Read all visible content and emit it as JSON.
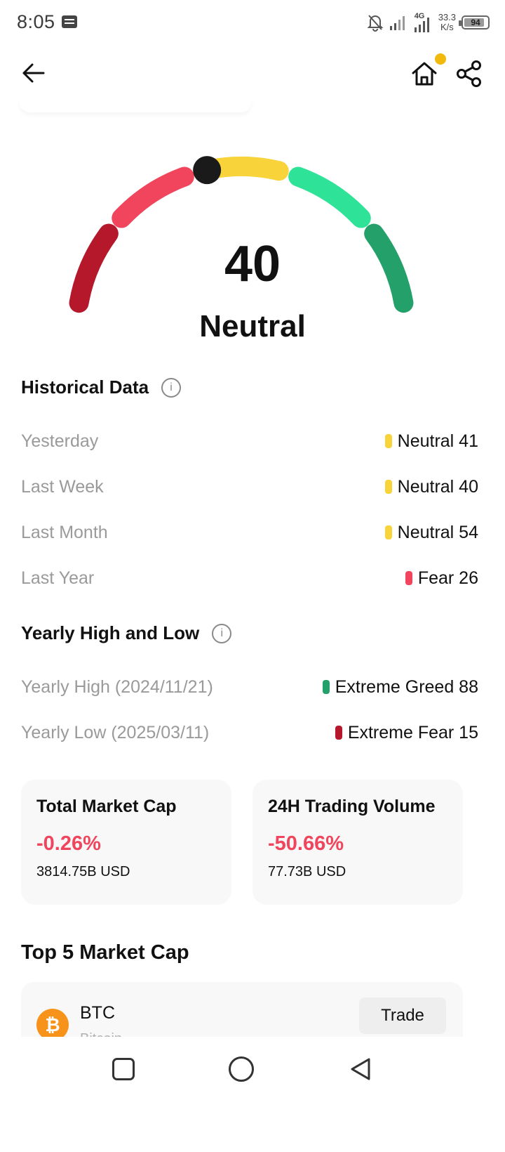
{
  "status_bar": {
    "time": "8:05",
    "network": "4G",
    "speed_value": "33.3",
    "speed_unit": "K/s",
    "battery": "94",
    "icons": [
      "message-icon",
      "bell-off-icon",
      "signal-icon",
      "signal-4g-icon",
      "battery-icon"
    ]
  },
  "app_bar": {
    "icons": [
      "back-arrow-icon",
      "home-icon",
      "share-icon"
    ],
    "notification_dot_color": "#f0b90b"
  },
  "gauge": {
    "value": "40",
    "label": "Neutral",
    "indicator_level": 40,
    "segment_colors": [
      "#b5172b",
      "#f0455c",
      "#f8d33a",
      "#2ee397",
      "#24a06b"
    ],
    "indicator_color": "#1a1a1a"
  },
  "historical": {
    "title": "Historical Data",
    "rows": [
      {
        "label": "Yesterday",
        "value": "Neutral 41",
        "color": "#f8d33a"
      },
      {
        "label": "Last Week",
        "value": "Neutral 40",
        "color": "#f8d33a"
      },
      {
        "label": "Last Month",
        "value": "Neutral 54",
        "color": "#f8d33a"
      },
      {
        "label": "Last Year",
        "value": "Fear 26",
        "color": "#f0455c"
      }
    ]
  },
  "yearly": {
    "title": "Yearly High and Low",
    "rows": [
      {
        "label": "Yearly High (2024/11/21)",
        "value": "Extreme Greed 88",
        "color": "#24a06b"
      },
      {
        "label": "Yearly Low (2025/03/11)",
        "value": "Extreme Fear 15",
        "color": "#b5172b"
      }
    ]
  },
  "cards": [
    {
      "title": "Total Market Cap",
      "change": "-0.26%",
      "amount": "3814.75B USD"
    },
    {
      "title": "24H Trading Volume",
      "change": "-50.66%",
      "amount": "77.73B USD"
    }
  ],
  "top5": {
    "title": "Top 5 Market Cap",
    "coin": {
      "symbol": "BTC",
      "name": "Bitcoin",
      "icon_glyph": "₿",
      "trade_label": "Trade"
    }
  },
  "colors": {
    "negative": "#f0455c",
    "accent": "#f0b90b"
  }
}
